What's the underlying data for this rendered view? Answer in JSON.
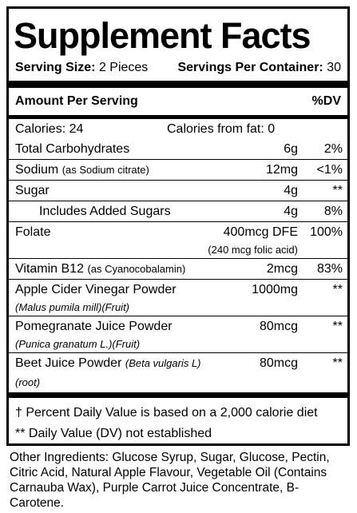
{
  "label": {
    "title": "Supplement Facts",
    "serving_size_label": "Serving Size:",
    "serving_size": "2 Pieces",
    "servings_label": "Servings Per Container:",
    "servings": "30",
    "amount_header": "Amount Per Serving",
    "dv_header": "%DV",
    "calories": "Calories: 24",
    "calories_fat": "Calories from fat: 0",
    "rows": [
      {
        "name": "Total Carbohydrates",
        "amount": "6g",
        "dv": "2%"
      },
      {
        "name": "Sodium",
        "detail": "(as Sodium citrate)",
        "amount": "12mg",
        "dv": "<1%"
      },
      {
        "name": "Sugar",
        "amount": "4g",
        "dv": "**"
      },
      {
        "name": "Includes Added Sugars",
        "amount": "4g",
        "dv": "8%",
        "sub": true
      },
      {
        "name": "Folate",
        "amount": "400mcg DFE",
        "amount_note": "(240 mcg folic acid)",
        "dv": "100%"
      },
      {
        "name": "Vitamin B12",
        "detail": "(as Cyanocobalamin)",
        "amount": "2mcg",
        "dv": "83%"
      },
      {
        "name": "Apple Cider Vinegar Powder",
        "source": "(Malus pumila mill)(Fruit)",
        "amount": "1000mg",
        "dv": "**"
      },
      {
        "name": "Pomegranate Juice Powder",
        "source": "(Punica granatum L.)(Fruit)",
        "amount": "80mcg",
        "dv": "**"
      },
      {
        "name": "Beet Juice Powder",
        "source_inline": "(Beta vulgaris L)(root)",
        "amount": "80mcg",
        "dv": "**"
      }
    ],
    "footnotes": [
      "† Percent Daily Value is based on a 2,000 calorie diet",
      "** Daily Value (DV) not established"
    ],
    "other_ingredients": "Other Ingredients: Glucose Syrup, Sugar, Glucose, Pectin, Citric Acid, Natural Apple Flavour, Vegetable Oil (Contains Carnauba Wax), Purple Carrot Juice Concentrate, B-Carotene."
  }
}
